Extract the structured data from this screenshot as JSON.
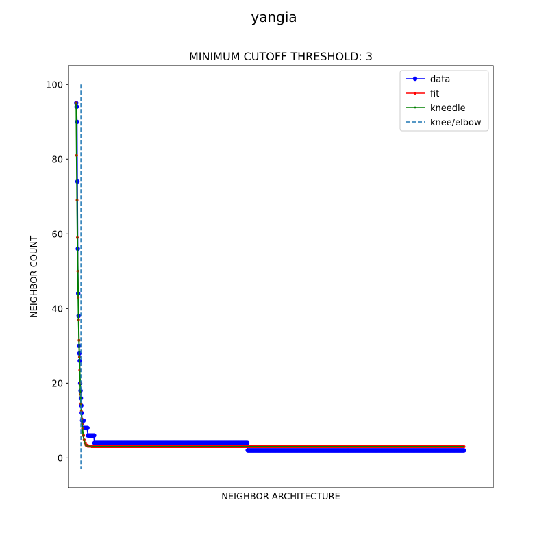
{
  "figure": {
    "suptitle": "yangia"
  },
  "chart_data": {
    "type": "line",
    "title": "MINIMUM CUTOFF THRESHOLD: 3",
    "xlabel": "NEIGHBOR ARCHITECTURE",
    "ylabel": "NEIGHBOR COUNT",
    "ylim": [
      -8,
      105
    ],
    "xlim": [
      -20,
      1075
    ],
    "yticks": [
      0,
      20,
      40,
      60,
      80,
      100
    ],
    "xticks": [],
    "grid": false,
    "legend_position": "top-right",
    "knee_x": 12,
    "knee_y_range": [
      -3,
      100
    ],
    "series": [
      {
        "name": "data",
        "color": "#0000ff",
        "marker": "circle",
        "points": [
          [
            0,
            95
          ],
          [
            1,
            94
          ],
          [
            2,
            90
          ],
          [
            3,
            74
          ],
          [
            4,
            56
          ],
          [
            5,
            44
          ],
          [
            6,
            38
          ],
          [
            7,
            30
          ],
          [
            8,
            28
          ],
          [
            9,
            26
          ],
          [
            10,
            20
          ],
          [
            11,
            18
          ],
          [
            12,
            16
          ],
          [
            13,
            14
          ],
          [
            14,
            12
          ],
          [
            15,
            10
          ],
          [
            16,
            10
          ],
          [
            18,
            10
          ],
          [
            20,
            8
          ],
          [
            28,
            8
          ],
          [
            30,
            6
          ],
          [
            45,
            6
          ],
          [
            47,
            4
          ],
          [
            440,
            4
          ],
          [
            442,
            2
          ],
          [
            1000,
            2
          ]
        ]
      },
      {
        "name": "fit",
        "color": "#ff0000",
        "marker": "dot",
        "points": [
          [
            0,
            95
          ],
          [
            1,
            81
          ],
          [
            2,
            69
          ],
          [
            3,
            59
          ],
          [
            4,
            50
          ],
          [
            5,
            43
          ],
          [
            6,
            37
          ],
          [
            7,
            31.5
          ],
          [
            8,
            27
          ],
          [
            9,
            23.5
          ],
          [
            10,
            20
          ],
          [
            11,
            17
          ],
          [
            12,
            14.5
          ],
          [
            13,
            12.5
          ],
          [
            14,
            10.5
          ],
          [
            15,
            9
          ],
          [
            16,
            7.8
          ],
          [
            18,
            6
          ],
          [
            20,
            4.8
          ],
          [
            22,
            4
          ],
          [
            25,
            3.4
          ],
          [
            30,
            3.1
          ],
          [
            40,
            3
          ],
          [
            1000,
            3
          ]
        ]
      },
      {
        "name": "kneedle",
        "color": "#008000",
        "marker": "small-dot",
        "points": [
          [
            0,
            95
          ],
          [
            1,
            81
          ],
          [
            2,
            69
          ],
          [
            3,
            59
          ],
          [
            4,
            50
          ],
          [
            5,
            43
          ],
          [
            6,
            37
          ],
          [
            7,
            31.5
          ],
          [
            8,
            27
          ],
          [
            9,
            23.5
          ],
          [
            10,
            20
          ],
          [
            11,
            17
          ],
          [
            12,
            14.5
          ],
          [
            13,
            12.5
          ],
          [
            14,
            10.5
          ],
          [
            15,
            9
          ],
          [
            16,
            7.8
          ],
          [
            18,
            6
          ],
          [
            20,
            4.8
          ],
          [
            22,
            4
          ],
          [
            25,
            3.4
          ],
          [
            30,
            3.1
          ],
          [
            40,
            3
          ],
          [
            1000,
            3
          ]
        ]
      },
      {
        "name": "knee/elbow",
        "color": "#1f77b4",
        "style": "dashed"
      }
    ]
  }
}
